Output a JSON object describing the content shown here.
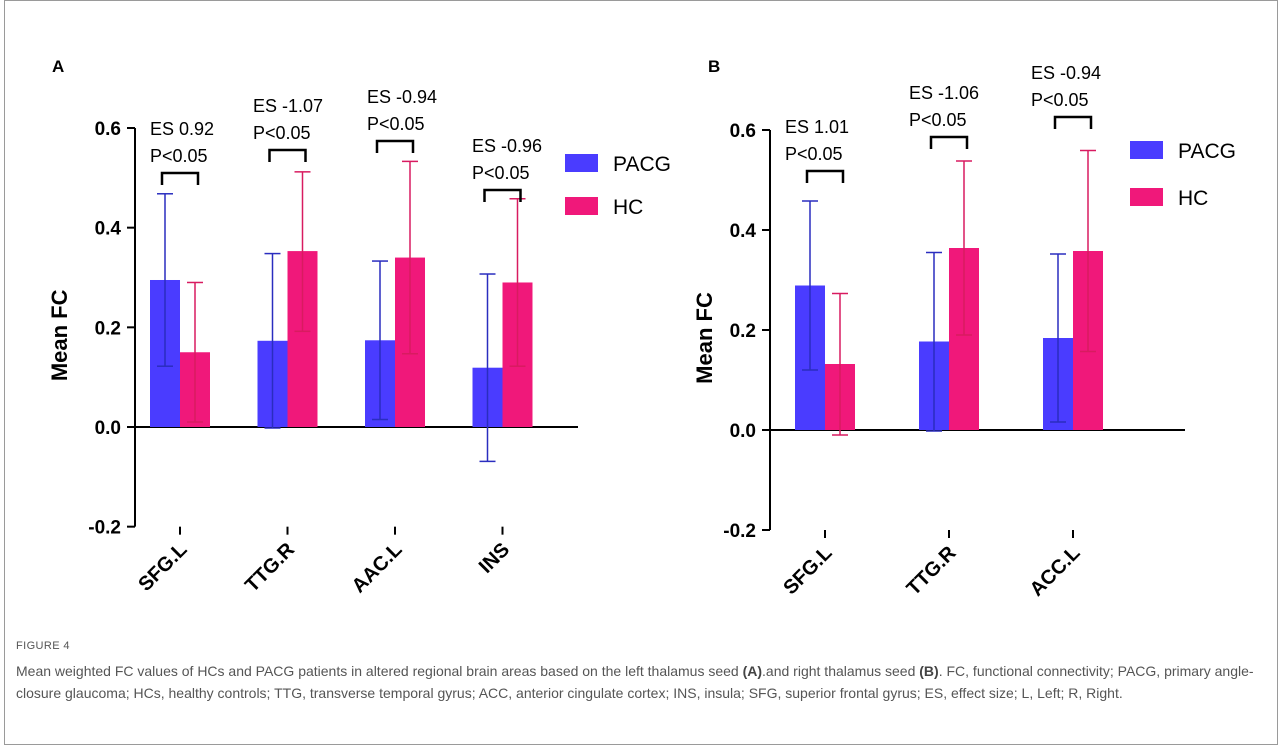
{
  "colors": {
    "pacg": "#4a3cff",
    "hc": "#f0187a",
    "pacg_err": "#2a2dbf",
    "hc_err": "#d81b60",
    "axis": "#000000",
    "caption": "#555555"
  },
  "chart_data": [
    {
      "panel_label": "A",
      "type": "bar",
      "ylabel": "Mean FC",
      "ylim": [
        -0.2,
        0.6
      ],
      "yticks": [
        "-0.2",
        "0.0",
        "0.2",
        "0.4",
        "0.6"
      ],
      "categories": [
        "SFG.L",
        "TTG.R",
        "AAC.L",
        "INS"
      ],
      "series": [
        {
          "name": "PACG",
          "values": [
            0.295,
            0.173,
            0.174,
            0.119
          ],
          "err_high": [
            0.468,
            0.348,
            0.333,
            0.307
          ],
          "err_low": [
            0.122,
            -0.002,
            0.015,
            -0.069
          ]
        },
        {
          "name": "HC",
          "values": [
            0.15,
            0.353,
            0.34,
            0.29
          ],
          "err_high": [
            0.29,
            0.512,
            0.533,
            0.458
          ],
          "err_low": [
            0.01,
            0.192,
            0.147,
            0.122
          ]
        }
      ],
      "annotations": [
        {
          "es": "ES 0.92",
          "p": "P<0.05"
        },
        {
          "es": "ES -1.07",
          "p": "P<0.05"
        },
        {
          "es": "ES -0.94",
          "p": "P<0.05"
        },
        {
          "es": "ES -0.96",
          "p": "P<0.05"
        }
      ],
      "legend": [
        "PACG",
        "HC"
      ],
      "legend_position": "right"
    },
    {
      "panel_label": "B",
      "type": "bar",
      "ylabel": "Mean FC",
      "ylim": [
        -0.2,
        0.6
      ],
      "yticks": [
        "-0.2",
        "0.0",
        "0.2",
        "0.4",
        "0.6"
      ],
      "categories": [
        "SFG.L",
        "TTG.R",
        "ACC.L"
      ],
      "series": [
        {
          "name": "PACG",
          "values": [
            0.289,
            0.177,
            0.184
          ],
          "err_high": [
            0.458,
            0.355,
            0.352
          ],
          "err_low": [
            0.12,
            -0.002,
            0.016
          ]
        },
        {
          "name": "HC",
          "values": [
            0.132,
            0.364,
            0.358
          ],
          "err_high": [
            0.273,
            0.538,
            0.559
          ],
          "err_low": [
            -0.01,
            0.19,
            0.157
          ]
        }
      ],
      "annotations": [
        {
          "es": "ES 1.01",
          "p": "P<0.05"
        },
        {
          "es": "ES -1.06",
          "p": "P<0.05"
        },
        {
          "es": "ES -0.94",
          "p": "P<0.05"
        }
      ],
      "legend": [
        "PACG",
        "HC"
      ],
      "legend_position": "right"
    }
  ],
  "caption": {
    "label": "FIGURE 4",
    "part1": "Mean weighted FC values of HCs and PACG patients in altered regional brain areas based on the left thalamus seed ",
    "ref_a": "(A)",
    "part2": ".and right thalamus seed ",
    "ref_b": "(B)",
    "part3": ". FC, functional connectivity; PACG, primary angle-closure glaucoma; HCs, healthy controls; TTG, transverse temporal gyrus; ACC, anterior cingulate cortex; INS, insula; SFG, superior frontal gyrus; ES, effect size; L, Left; R, Right."
  }
}
